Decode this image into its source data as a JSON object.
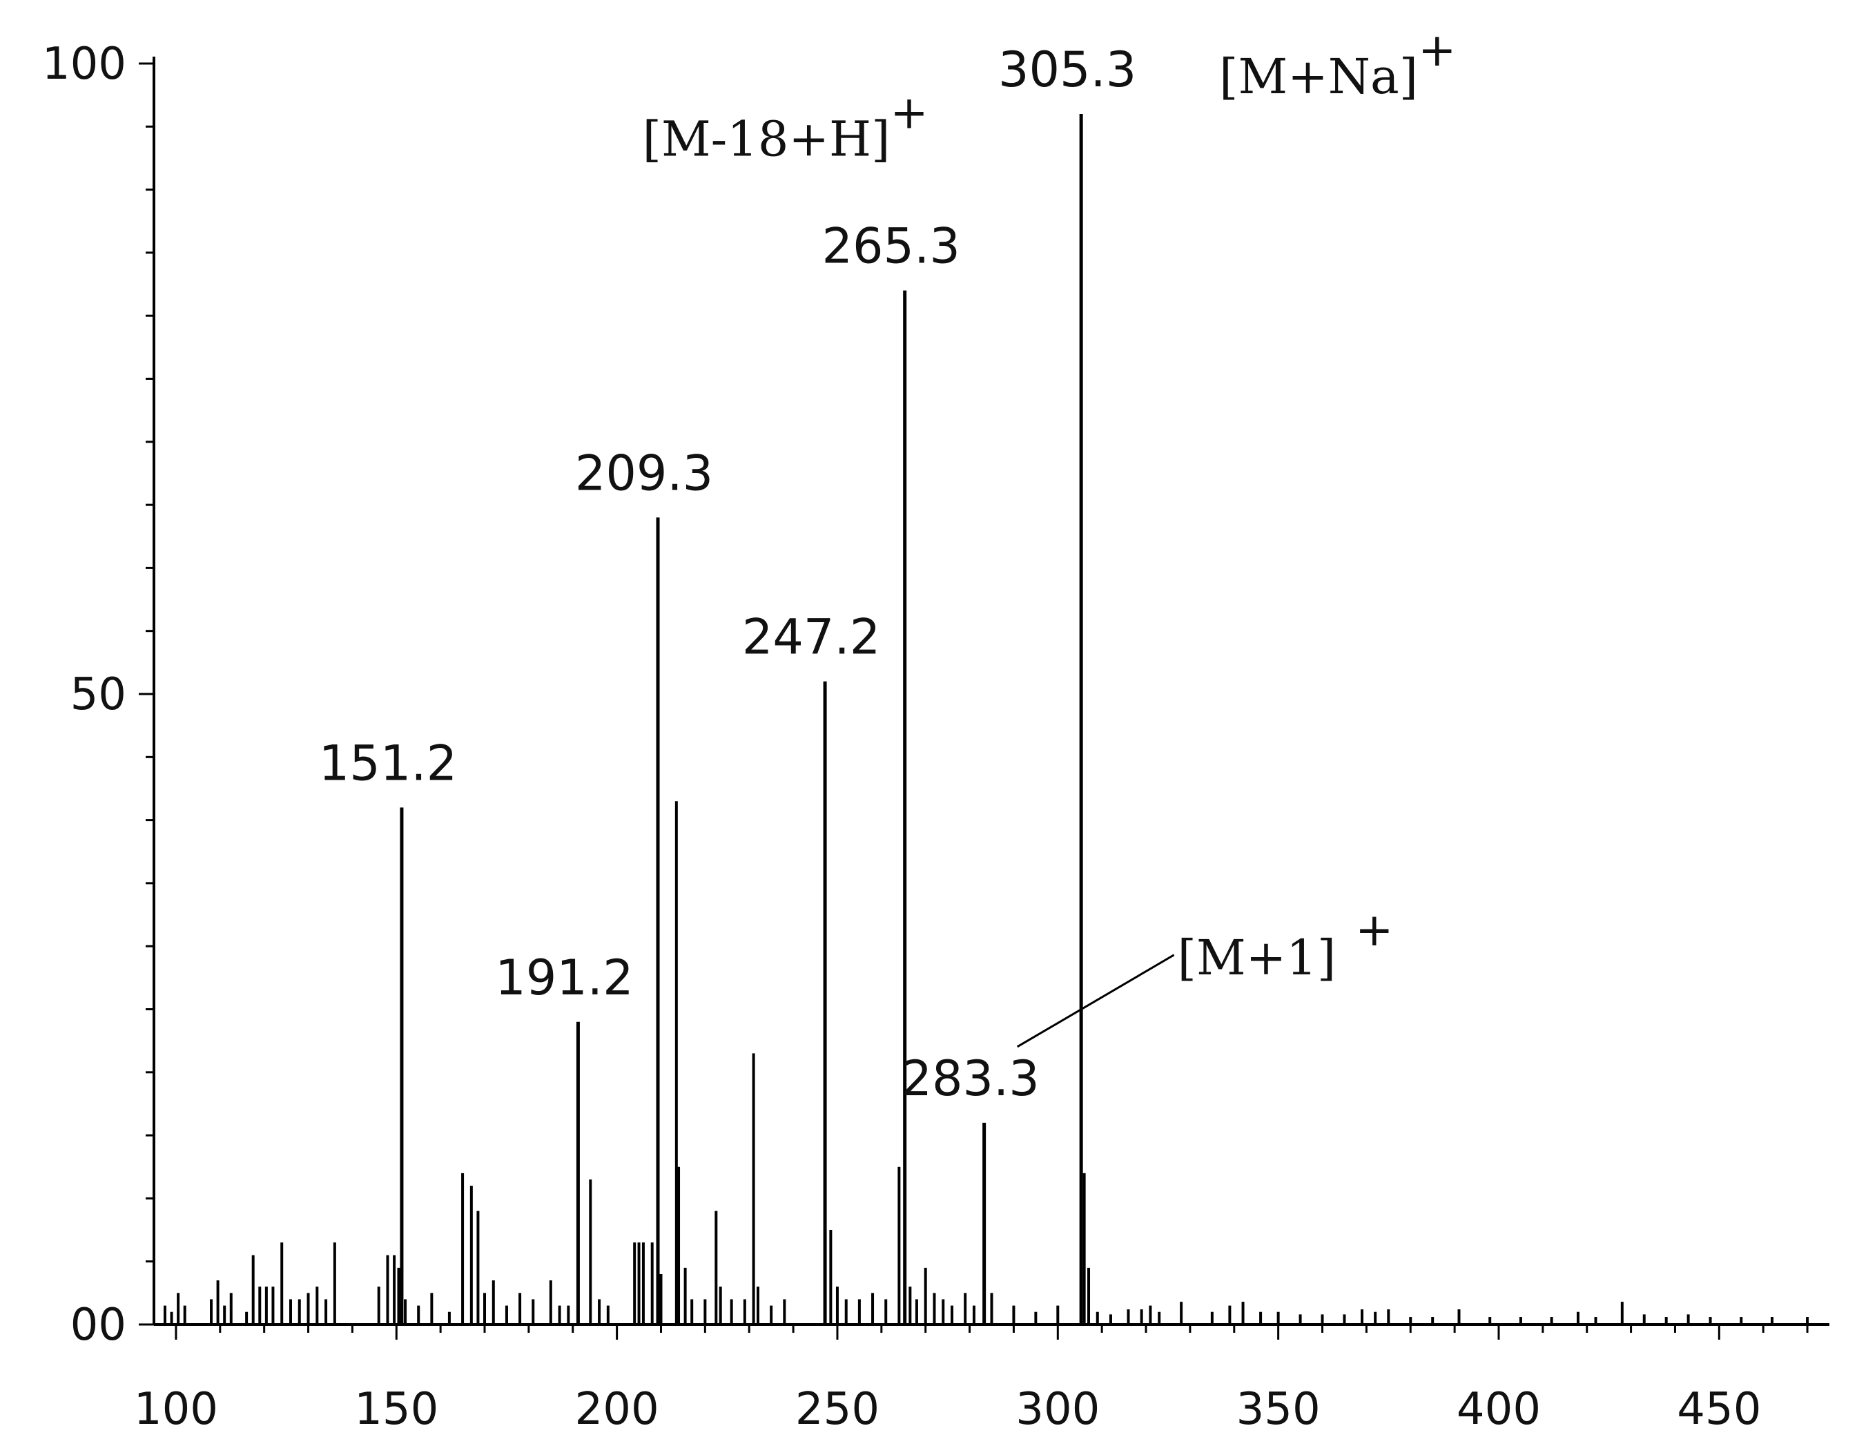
{
  "chart_data": {
    "type": "bar",
    "title": "",
    "xlabel": "",
    "ylabel": "",
    "xlim": [
      95,
      475
    ],
    "ylim": [
      0,
      100
    ],
    "x_ticks": [
      100,
      150,
      200,
      250,
      300,
      350,
      400,
      450
    ],
    "x_tick_labels": [
      "100",
      "150",
      "200",
      "250",
      "300",
      "350",
      "400",
      "450"
    ],
    "y_ticks": [
      0,
      50,
      100
    ],
    "y_tick_labels": [
      "00",
      "50",
      "100"
    ],
    "grid": false,
    "labeled_peaks": [
      {
        "mz": 151.2,
        "intensity": 41,
        "label": "151.2"
      },
      {
        "mz": 191.2,
        "intensity": 24,
        "label": "191.2"
      },
      {
        "mz": 209.3,
        "intensity": 64,
        "label": "209.3"
      },
      {
        "mz": 247.2,
        "intensity": 51,
        "label": "247.2"
      },
      {
        "mz": 265.3,
        "intensity": 82,
        "label": "265.3"
      },
      {
        "mz": 283.3,
        "intensity": 16,
        "label": "283.3"
      },
      {
        "mz": 305.3,
        "intensity": 96,
        "label": "305.3"
      }
    ],
    "peaks": [
      {
        "mz": 97.5,
        "intensity": 1.5
      },
      {
        "mz": 99,
        "intensity": 1
      },
      {
        "mz": 100.5,
        "intensity": 2.5
      },
      {
        "mz": 102,
        "intensity": 1.5
      },
      {
        "mz": 108,
        "intensity": 2
      },
      {
        "mz": 109.5,
        "intensity": 3.5
      },
      {
        "mz": 111,
        "intensity": 1.5
      },
      {
        "mz": 112.5,
        "intensity": 2.5
      },
      {
        "mz": 116,
        "intensity": 1
      },
      {
        "mz": 117.5,
        "intensity": 5.5
      },
      {
        "mz": 119,
        "intensity": 3
      },
      {
        "mz": 120.5,
        "intensity": 3
      },
      {
        "mz": 122,
        "intensity": 3
      },
      {
        "mz": 124,
        "intensity": 6.5
      },
      {
        "mz": 126,
        "intensity": 2
      },
      {
        "mz": 128,
        "intensity": 2
      },
      {
        "mz": 130,
        "intensity": 2.5
      },
      {
        "mz": 132,
        "intensity": 3
      },
      {
        "mz": 134,
        "intensity": 2
      },
      {
        "mz": 136,
        "intensity": 6.5
      },
      {
        "mz": 146,
        "intensity": 3
      },
      {
        "mz": 148,
        "intensity": 5.5
      },
      {
        "mz": 149.5,
        "intensity": 5.5
      },
      {
        "mz": 150.5,
        "intensity": 4.5
      },
      {
        "mz": 152,
        "intensity": 2
      },
      {
        "mz": 155,
        "intensity": 1.5
      },
      {
        "mz": 158,
        "intensity": 2.5
      },
      {
        "mz": 162,
        "intensity": 1
      },
      {
        "mz": 165,
        "intensity": 12
      },
      {
        "mz": 167,
        "intensity": 11
      },
      {
        "mz": 168.5,
        "intensity": 9
      },
      {
        "mz": 170,
        "intensity": 2.5
      },
      {
        "mz": 172,
        "intensity": 3.5
      },
      {
        "mz": 175,
        "intensity": 1.5
      },
      {
        "mz": 178,
        "intensity": 2.5
      },
      {
        "mz": 181,
        "intensity": 2
      },
      {
        "mz": 185,
        "intensity": 3.5
      },
      {
        "mz": 187,
        "intensity": 1.5
      },
      {
        "mz": 189,
        "intensity": 1.5
      },
      {
        "mz": 194,
        "intensity": 11.5
      },
      {
        "mz": 196,
        "intensity": 2
      },
      {
        "mz": 198,
        "intensity": 1.5
      },
      {
        "mz": 204,
        "intensity": 6.5
      },
      {
        "mz": 205,
        "intensity": 6.5
      },
      {
        "mz": 206,
        "intensity": 6.5
      },
      {
        "mz": 208,
        "intensity": 6.5
      },
      {
        "mz": 210,
        "intensity": 4
      },
      {
        "mz": 213.5,
        "intensity": 41.5
      },
      {
        "mz": 214,
        "intensity": 12.5
      },
      {
        "mz": 215.5,
        "intensity": 4.5
      },
      {
        "mz": 217,
        "intensity": 2
      },
      {
        "mz": 220,
        "intensity": 2
      },
      {
        "mz": 222.5,
        "intensity": 9
      },
      {
        "mz": 223.5,
        "intensity": 3
      },
      {
        "mz": 226,
        "intensity": 2
      },
      {
        "mz": 229,
        "intensity": 2
      },
      {
        "mz": 231,
        "intensity": 21.5
      },
      {
        "mz": 232,
        "intensity": 3
      },
      {
        "mz": 235,
        "intensity": 1.5
      },
      {
        "mz": 238,
        "intensity": 2
      },
      {
        "mz": 248.5,
        "intensity": 7.5
      },
      {
        "mz": 250,
        "intensity": 3
      },
      {
        "mz": 252,
        "intensity": 2
      },
      {
        "mz": 255,
        "intensity": 2
      },
      {
        "mz": 258,
        "intensity": 2.5
      },
      {
        "mz": 261,
        "intensity": 2
      },
      {
        "mz": 264,
        "intensity": 12.5
      },
      {
        "mz": 266.5,
        "intensity": 3
      },
      {
        "mz": 268,
        "intensity": 2
      },
      {
        "mz": 270,
        "intensity": 4.5
      },
      {
        "mz": 272,
        "intensity": 2.5
      },
      {
        "mz": 274,
        "intensity": 2
      },
      {
        "mz": 276,
        "intensity": 1.5
      },
      {
        "mz": 279,
        "intensity": 2.5
      },
      {
        "mz": 281,
        "intensity": 1.5
      },
      {
        "mz": 285,
        "intensity": 2.5
      },
      {
        "mz": 290,
        "intensity": 1.5
      },
      {
        "mz": 295,
        "intensity": 1
      },
      {
        "mz": 300,
        "intensity": 1.5
      },
      {
        "mz": 306,
        "intensity": 12
      },
      {
        "mz": 307,
        "intensity": 4.5
      },
      {
        "mz": 309,
        "intensity": 1
      },
      {
        "mz": 312,
        "intensity": 0.8
      },
      {
        "mz": 316,
        "intensity": 1.2
      },
      {
        "mz": 319,
        "intensity": 1.2
      },
      {
        "mz": 321,
        "intensity": 1.5
      },
      {
        "mz": 323,
        "intensity": 1
      },
      {
        "mz": 328,
        "intensity": 1.8
      },
      {
        "mz": 335,
        "intensity": 1
      },
      {
        "mz": 339,
        "intensity": 1.5
      },
      {
        "mz": 342,
        "intensity": 1.8
      },
      {
        "mz": 346,
        "intensity": 1
      },
      {
        "mz": 350,
        "intensity": 1
      },
      {
        "mz": 355,
        "intensity": 0.8
      },
      {
        "mz": 360,
        "intensity": 0.8
      },
      {
        "mz": 365,
        "intensity": 0.8
      },
      {
        "mz": 369,
        "intensity": 1.2
      },
      {
        "mz": 372,
        "intensity": 1
      },
      {
        "mz": 375,
        "intensity": 1.2
      },
      {
        "mz": 380,
        "intensity": 0.6
      },
      {
        "mz": 385,
        "intensity": 0.6
      },
      {
        "mz": 391,
        "intensity": 1.2
      },
      {
        "mz": 398,
        "intensity": 0.6
      },
      {
        "mz": 405,
        "intensity": 0.6
      },
      {
        "mz": 412,
        "intensity": 0.6
      },
      {
        "mz": 418,
        "intensity": 1
      },
      {
        "mz": 422,
        "intensity": 0.6
      },
      {
        "mz": 428,
        "intensity": 1.8
      },
      {
        "mz": 433,
        "intensity": 0.8
      },
      {
        "mz": 438,
        "intensity": 0.6
      },
      {
        "mz": 443,
        "intensity": 0.8
      },
      {
        "mz": 448,
        "intensity": 0.6
      },
      {
        "mz": 455,
        "intensity": 0.6
      },
      {
        "mz": 462,
        "intensity": 0.6
      },
      {
        "mz": 470,
        "intensity": 0.6
      }
    ],
    "annotations": [
      {
        "text": "[M+Na]",
        "sup": "+",
        "peak": 305.3
      },
      {
        "text": "[M-18+H]",
        "sup": "+",
        "peak": 265.3
      },
      {
        "text": "[M+1]",
        "sup": "+",
        "peak": 283.3
      }
    ],
    "colors": {
      "line": "#000000",
      "text": "#111111",
      "background": "#ffffff"
    }
  }
}
